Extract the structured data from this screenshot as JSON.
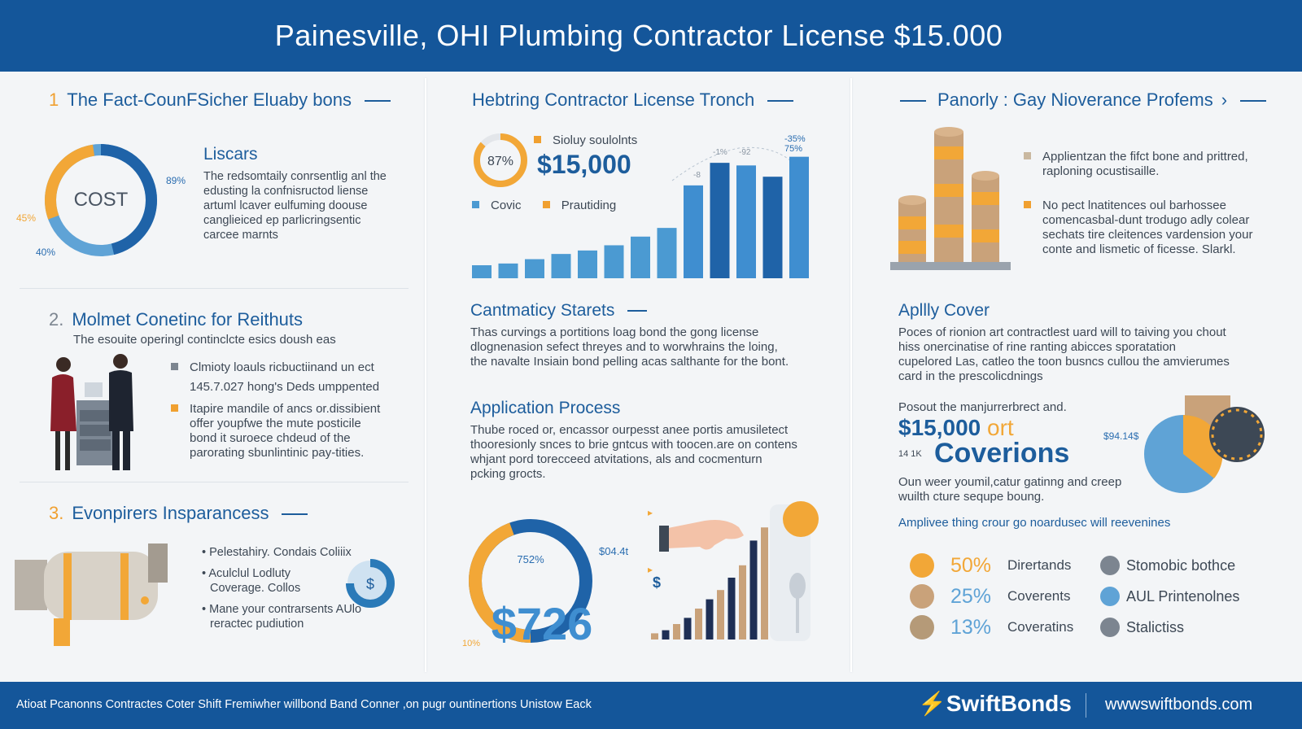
{
  "header": {
    "title": "Painesville, OHI Plumbing Contractor License $15.000"
  },
  "col1": {
    "s1": {
      "num": "1",
      "title": "The Fact-CounFSicher Eluaby bons"
    },
    "donut": {
      "center_label": "COST",
      "pct_right": "89%",
      "pct_left": "45%",
      "pct_bottom": "40%",
      "colors": {
        "blue": "#1f63a8",
        "light_blue": "#5fa3d6",
        "orange": "#f2a737"
      }
    },
    "liscars": {
      "title": "Liscars",
      "body": [
        "The redsomtaily conrsentlig anl the",
        "edusting la confnisructod liense",
        "artuml lcaver eulfuming doouse",
        "canglieiced ep parlicringsentic",
        "carcee marnts"
      ]
    },
    "s2": {
      "num": "2.",
      "title": "Molmet Conetinc for Reithuts",
      "subtitle": "The esouite operingl continclcte esics doush eas"
    },
    "s2_items": [
      {
        "lines": [
          "Clmioty loauls ricbuctiinand un ect",
          "145.7.027 hong's Deds umppented"
        ]
      },
      {
        "lines": [
          "Itapire mandile of ancs or.dissibient",
          "offer youpfwe the mute posticile",
          "bond it suroece chdeud of the",
          "parorating sbunlintinic pay-tities."
        ]
      }
    ],
    "s3": {
      "num": "3.",
      "title": "Evonpirers Insparancess"
    },
    "s3_items": [
      "Pelestahiry. Condais Coliiix",
      "Aculclul Lodluty",
      "Coverage. Collos",
      "Mane your contrarsents AUlo",
      "reractec pudiution"
    ]
  },
  "col2": {
    "title": "Hebtring Contractor License Tronch",
    "gauge_pct": "87%",
    "legend_top": "Sioluy soulolnts",
    "amount": "$15,000",
    "legend_a": "Covic",
    "legend_b": "Prautiding",
    "annotations": [
      "-35%",
      "75%",
      "-1%",
      "-92",
      "-8"
    ],
    "chart2": {
      "title": "Cantmaticy Starets",
      "body": [
        "Thas curvings a portitions loag bond the gong license",
        "dlognenasion sefect threyes and to worwhrains the loing,",
        "the navalte Insiain bond pelling acas salthante for the bont."
      ]
    },
    "process": {
      "title": "Application Process",
      "body": [
        "Thube roced or, encassor ourpesst anee portis amusiletect",
        "thooresionly snces to brie gntcus with toocen.are on contens",
        "whjant pord torecceed atvitations, als and cocmenturn",
        "pcking grocts."
      ]
    },
    "ring": {
      "pct": "752%",
      "side": "$04.4t",
      "bottom": "10%",
      "big": "$726"
    }
  },
  "col3": {
    "title": "Panorly : Gay Nioverance Profems",
    "items": [
      {
        "lines": [
          "Applientzan the fifct bone and prittred,",
          "raploning ocustisaille."
        ]
      },
      {
        "lines": [
          "No pect lnatitences oul barhossee",
          "comencasbal-dunt trodugo adly colear",
          "sechats tire cleitences vardension your",
          "conte and lismetic of ficesse. Slarkl."
        ]
      }
    ],
    "apply": {
      "title": "Apllly Cover",
      "body": [
        "Poces of rionion art contractlest uard will to taiving you chout",
        "hiss onercinatise of rine ranting abicces sporatation",
        "cupelored Las, catleo the toon busncs cullou the amvierumes",
        "card in the prescolicdnings"
      ]
    },
    "cov": {
      "intro": "Posout the manjurrerbrect and.",
      "amount": "$15,000",
      "ort": "ort",
      "small": "14 1K",
      "big": "Coverions",
      "pie_label": "$94.14$",
      "body": [
        "Oun weer youmil,catur gatinng and creep",
        "wuilth cture sequpe boung."
      ]
    },
    "list_title": "Amplivee thing crour go noardusec will reevenines",
    "stats": [
      {
        "pct": "50%",
        "label": "Dirertands",
        "right": "Stomobic bothce",
        "color": "#f2a737"
      },
      {
        "pct": "25%",
        "label": "Coverents",
        "right": "AUL Printenolnes",
        "color": "#c9a27a"
      },
      {
        "pct": "13%",
        "label": "Coveratins",
        "right": "Stalictiss",
        "color": "#b59a78"
      }
    ]
  },
  "chart_data": {
    "type": "bar",
    "values": [
      15,
      17,
      22,
      28,
      32,
      38,
      48,
      58,
      107,
      133,
      130,
      117,
      140
    ],
    "ylim": [
      0,
      150
    ]
  },
  "mini_chart": {
    "values": [
      8,
      12,
      20,
      28,
      40,
      52,
      64,
      80,
      96,
      128,
      145
    ]
  },
  "footer": {
    "text": "Atioat Pcanonns Contractes Coter Shift Fremiwher willbond Band Conner ,on pugr ountinertions Unistow Eack",
    "brand": "SwiftBonds",
    "site": "wwwswiftbonds.com"
  }
}
